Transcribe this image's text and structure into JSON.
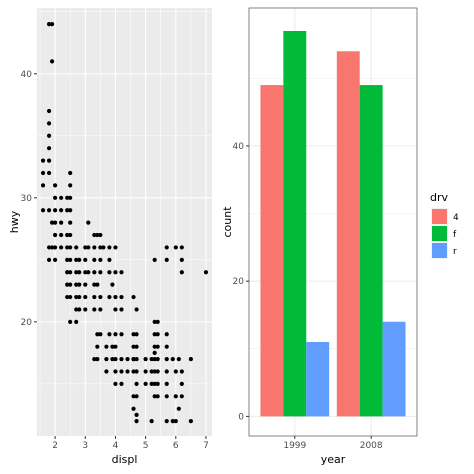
{
  "chart_data": [
    {
      "type": "scatter",
      "xlabel": "displ",
      "ylabel": "hwy",
      "xlim": [
        1.4,
        7.2
      ],
      "ylim": [
        10.8,
        45.3
      ],
      "x_ticks": [
        2,
        3,
        4,
        5,
        6,
        7
      ],
      "x_tick_labels": [
        "2",
        "3",
        "4",
        "5",
        "6",
        "7"
      ],
      "y_ticks": [
        20,
        30,
        40
      ],
      "y_tick_labels": [
        "20",
        "30",
        "40"
      ],
      "grid": true,
      "panel_background": "#ebebeb",
      "point_color": "#000000",
      "points": [
        [
          1.8,
          44
        ],
        [
          1.9,
          44
        ],
        [
          1.9,
          41
        ],
        [
          1.8,
          37
        ],
        [
          1.8,
          36
        ],
        [
          1.8,
          35
        ],
        [
          1.8,
          34
        ],
        [
          1.8,
          33
        ],
        [
          1.6,
          33
        ],
        [
          1.8,
          32
        ],
        [
          1.6,
          32
        ],
        [
          1.6,
          31
        ],
        [
          2.0,
          31
        ],
        [
          2.5,
          32
        ],
        [
          2.5,
          31
        ],
        [
          2.5,
          30
        ],
        [
          2.4,
          30
        ],
        [
          2.0,
          30
        ],
        [
          2.2,
          30
        ],
        [
          2.2,
          29
        ],
        [
          2.0,
          29
        ],
        [
          1.8,
          29
        ],
        [
          1.6,
          29
        ],
        [
          2.4,
          29
        ],
        [
          2.5,
          29
        ],
        [
          1.9,
          28
        ],
        [
          2.0,
          28
        ],
        [
          2.2,
          28
        ],
        [
          2.5,
          28
        ],
        [
          2.0,
          27
        ],
        [
          2.2,
          27
        ],
        [
          2.4,
          27
        ],
        [
          2.5,
          27
        ],
        [
          2.0,
          26
        ],
        [
          2.2,
          26
        ],
        [
          2.4,
          26
        ],
        [
          2.5,
          26
        ],
        [
          2.7,
          26
        ],
        [
          1.8,
          26
        ],
        [
          1.9,
          26
        ],
        [
          1.8,
          25
        ],
        [
          2.0,
          25
        ],
        [
          2.4,
          25
        ],
        [
          2.5,
          25
        ],
        [
          2.7,
          25
        ],
        [
          2.8,
          25
        ],
        [
          2.5,
          24
        ],
        [
          2.7,
          24
        ],
        [
          2.8,
          24
        ],
        [
          2.4,
          24
        ],
        [
          2.5,
          23
        ],
        [
          2.7,
          23
        ],
        [
          2.8,
          23
        ],
        [
          2.4,
          23
        ],
        [
          2.7,
          22
        ],
        [
          2.8,
          22
        ],
        [
          2.5,
          22
        ],
        [
          2.4,
          22
        ],
        [
          2.7,
          21
        ],
        [
          2.8,
          21
        ],
        [
          2.7,
          20
        ],
        [
          2.5,
          20
        ],
        [
          3.1,
          28
        ],
        [
          3.3,
          27
        ],
        [
          3.4,
          27
        ],
        [
          3.5,
          27
        ],
        [
          3.0,
          26
        ],
        [
          3.1,
          26
        ],
        [
          3.3,
          26
        ],
        [
          3.5,
          26
        ],
        [
          3.6,
          26
        ],
        [
          3.8,
          26
        ],
        [
          3.0,
          25
        ],
        [
          3.3,
          25
        ],
        [
          3.5,
          25
        ],
        [
          3.8,
          25
        ],
        [
          3.0,
          24
        ],
        [
          3.1,
          24
        ],
        [
          3.3,
          24
        ],
        [
          3.5,
          24
        ],
        [
          3.0,
          23
        ],
        [
          3.3,
          23
        ],
        [
          3.4,
          23
        ],
        [
          3.0,
          22
        ],
        [
          3.3,
          22
        ],
        [
          3.5,
          22
        ],
        [
          3.0,
          21
        ],
        [
          3.3,
          21
        ],
        [
          3.5,
          21
        ],
        [
          4.0,
          26
        ],
        [
          4.0,
          24
        ],
        [
          3.8,
          24
        ],
        [
          4.2,
          24
        ],
        [
          3.9,
          23
        ],
        [
          4.0,
          22
        ],
        [
          4.2,
          22
        ],
        [
          3.8,
          22
        ],
        [
          4.0,
          21
        ],
        [
          4.2,
          21
        ],
        [
          4.6,
          22
        ],
        [
          4.7,
          21
        ],
        [
          3.4,
          19
        ],
        [
          3.5,
          19
        ],
        [
          3.8,
          19
        ],
        [
          4.0,
          19
        ],
        [
          4.2,
          19
        ],
        [
          3.4,
          18
        ],
        [
          3.7,
          18
        ],
        [
          3.9,
          18
        ],
        [
          4.0,
          18
        ],
        [
          3.3,
          17
        ],
        [
          3.4,
          17
        ],
        [
          3.7,
          17
        ],
        [
          3.9,
          17
        ],
        [
          4.0,
          17
        ],
        [
          4.2,
          17
        ],
        [
          4.4,
          17
        ],
        [
          4.6,
          17
        ],
        [
          4.7,
          17
        ],
        [
          4.2,
          16
        ],
        [
          4.6,
          16
        ],
        [
          3.7,
          16
        ],
        [
          4.0,
          16
        ],
        [
          4.4,
          16
        ],
        [
          4.7,
          16
        ],
        [
          4.0,
          15
        ],
        [
          4.2,
          15
        ],
        [
          4.7,
          15
        ],
        [
          4.6,
          14
        ],
        [
          4.7,
          14
        ],
        [
          4.6,
          13
        ],
        [
          4.7,
          12
        ],
        [
          4.7,
          12.5
        ],
        [
          4.6,
          19
        ],
        [
          4.7,
          19
        ],
        [
          4.6,
          18
        ],
        [
          4.7,
          18
        ],
        [
          4.6,
          17
        ],
        [
          5.0,
          17
        ],
        [
          5.2,
          17
        ],
        [
          5.3,
          17
        ],
        [
          5.4,
          17
        ],
        [
          5.0,
          16
        ],
        [
          5.2,
          16
        ],
        [
          5.3,
          16
        ],
        [
          5.4,
          16
        ],
        [
          5.3,
          15
        ],
        [
          5.4,
          15
        ],
        [
          5.0,
          15
        ],
        [
          5.2,
          15
        ],
        [
          5.4,
          14
        ],
        [
          5.7,
          14
        ],
        [
          5.3,
          14
        ],
        [
          5.2,
          12
        ],
        [
          5.7,
          12
        ],
        [
          5.9,
          12
        ],
        [
          6.0,
          12
        ],
        [
          6.5,
          12
        ],
        [
          5.3,
          20
        ],
        [
          5.4,
          20
        ],
        [
          5.3,
          19
        ],
        [
          5.4,
          19
        ],
        [
          5.7,
          19
        ],
        [
          5.3,
          18
        ],
        [
          5.4,
          18
        ],
        [
          5.7,
          18
        ],
        [
          5.3,
          17.5
        ],
        [
          5.7,
          17
        ],
        [
          5.9,
          17
        ],
        [
          6.1,
          17
        ],
        [
          6.5,
          17
        ],
        [
          5.7,
          16
        ],
        [
          6.0,
          16
        ],
        [
          6.2,
          16
        ],
        [
          5.7,
          15
        ],
        [
          6.2,
          15
        ],
        [
          6.0,
          14
        ],
        [
          6.2,
          14
        ],
        [
          6.1,
          13
        ],
        [
          5.3,
          25
        ],
        [
          5.7,
          26
        ],
        [
          6.0,
          26
        ],
        [
          6.2,
          25
        ],
        [
          6.2,
          26
        ],
        [
          7.0,
          24
        ],
        [
          6.2,
          24
        ],
        [
          5.7,
          25
        ]
      ]
    },
    {
      "type": "bar",
      "xlabel": "year",
      "ylabel": "count",
      "categories": [
        "1999",
        "2008"
      ],
      "ylim": [
        -2.9,
        60.4
      ],
      "y_ticks": [
        0,
        20,
        40
      ],
      "y_tick_labels": [
        "0",
        "20",
        "40"
      ],
      "grid": true,
      "panel_background": "#ffffff",
      "legend": {
        "title": "drv",
        "placement": "right",
        "entries": [
          {
            "label": "4",
            "color": "#F8766D"
          },
          {
            "label": "f",
            "color": "#00BA38"
          },
          {
            "label": "r",
            "color": "#619CFF"
          }
        ]
      },
      "series": [
        {
          "name": "4",
          "color": "#F8766D",
          "values": [
            49,
            54
          ]
        },
        {
          "name": "f",
          "color": "#00BA38",
          "values": [
            57,
            49
          ]
        },
        {
          "name": "r",
          "color": "#619CFF",
          "values": [
            11,
            14
          ]
        }
      ]
    }
  ]
}
